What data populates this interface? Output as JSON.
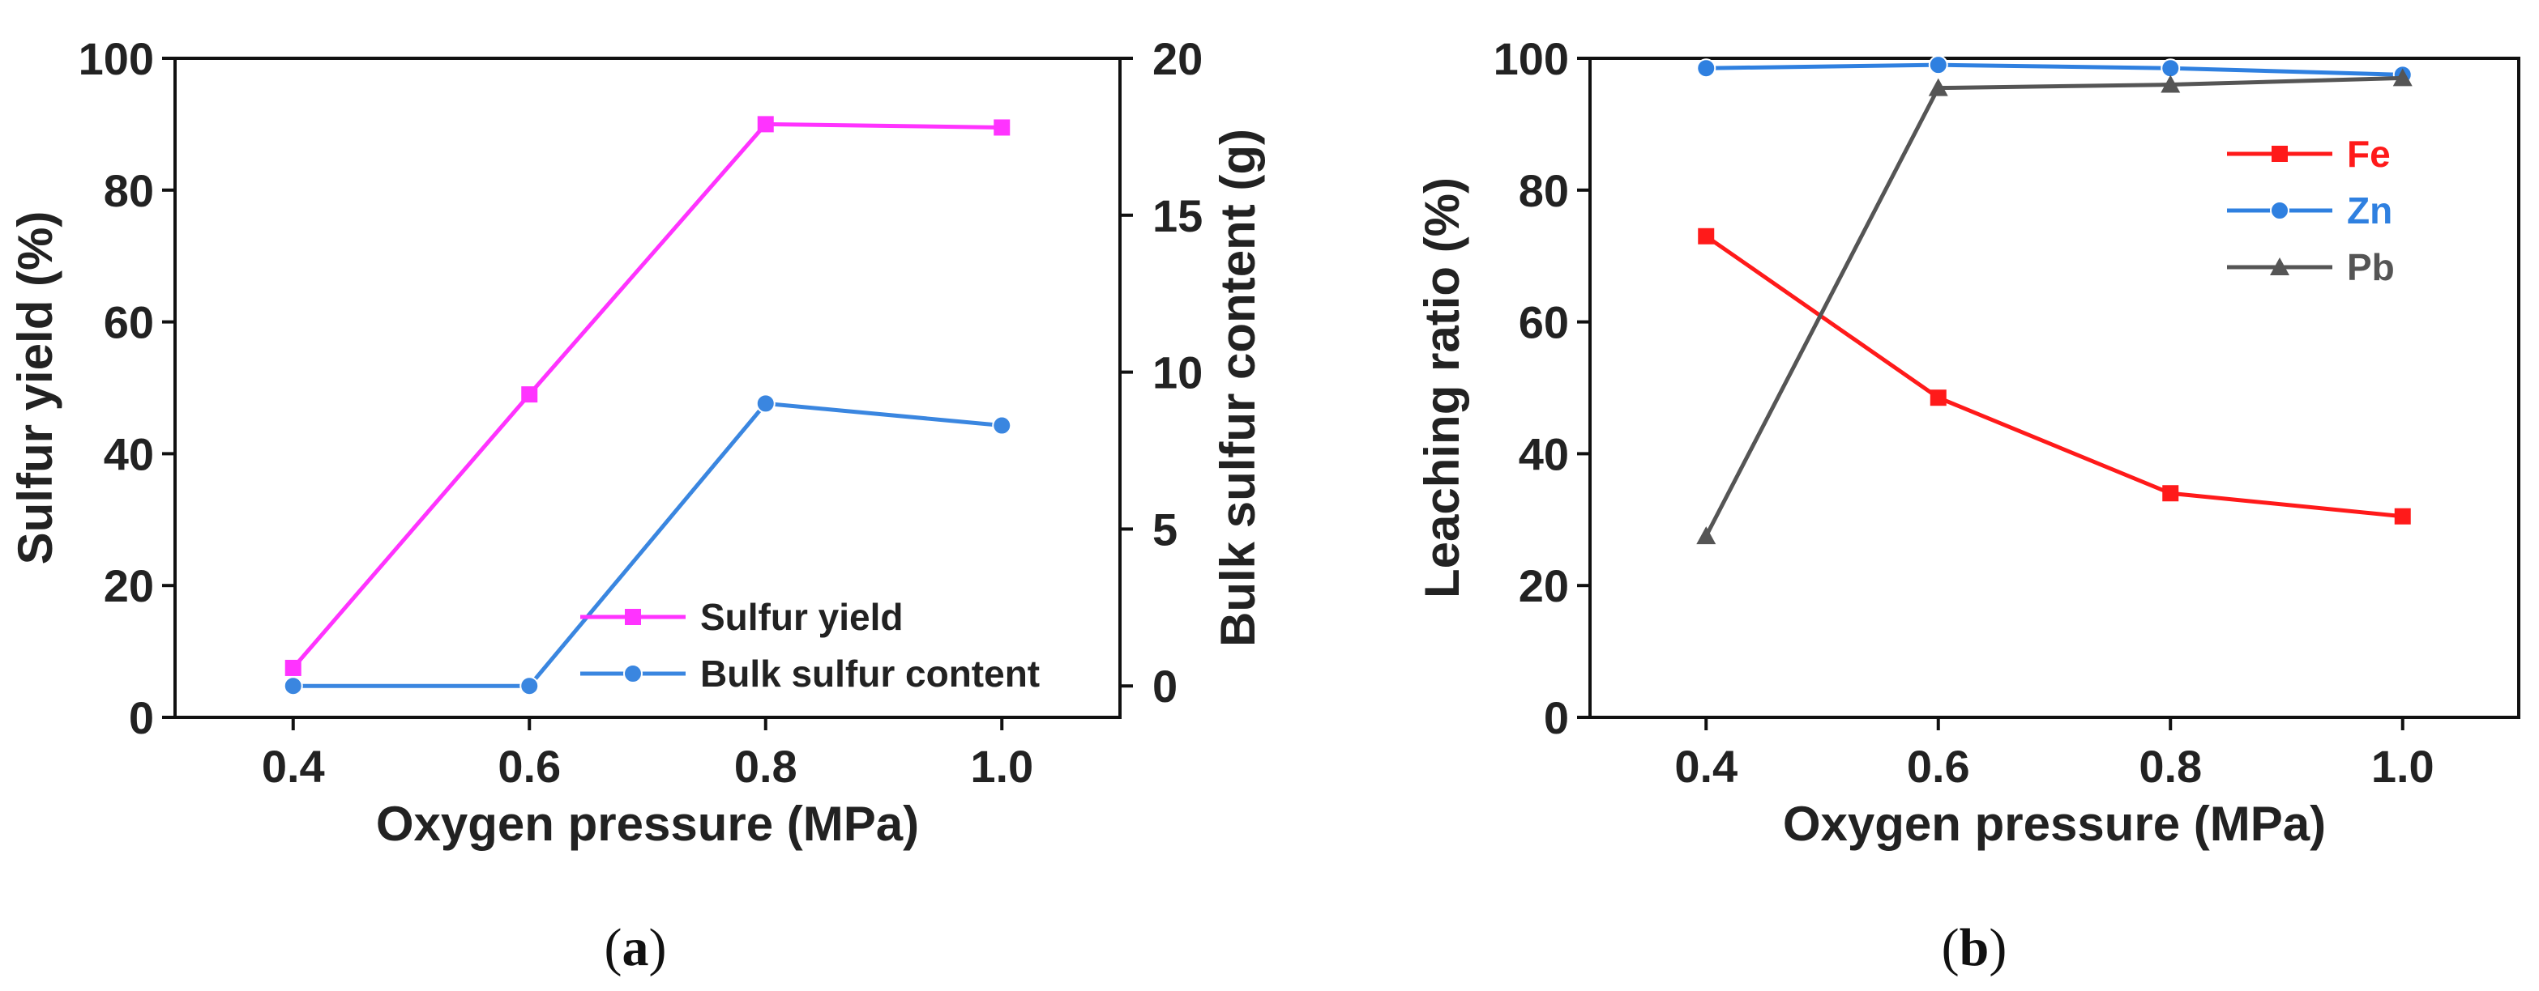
{
  "chart_data": [
    {
      "type": "line",
      "caption_letter": "a",
      "x": [
        0.4,
        0.6,
        0.8,
        1.0
      ],
      "x_ticks": [
        "0.4",
        "0.6",
        "0.8",
        "1.0"
      ],
      "xlabel": "Oxygen pressure (MPa)",
      "xlim": [
        0.3,
        1.1
      ],
      "ylabel": "Sulfur yield (%)",
      "ylim": [
        0,
        100
      ],
      "y_ticks": [
        "0",
        "20",
        "40",
        "60",
        "80",
        "100"
      ],
      "y2label": "Bulk sulfur content (g)",
      "y2lim": [
        -1,
        20
      ],
      "y2_ticks": [
        "0",
        "5",
        "10",
        "15",
        "20"
      ],
      "legend_position": "bottom-right",
      "series": [
        {
          "name": "Sulfur yield",
          "axis": "left",
          "values": [
            7.5,
            49,
            90,
            89.5
          ],
          "color": "#ff33ff",
          "marker": "square"
        },
        {
          "name": "Bulk sulfur content",
          "axis": "right",
          "values": [
            0,
            0,
            9,
            8.3
          ],
          "color": "#3a86e0",
          "marker": "circle"
        }
      ]
    },
    {
      "type": "line",
      "caption_letter": "b",
      "x": [
        0.4,
        0.6,
        0.8,
        1.0
      ],
      "x_ticks": [
        "0.4",
        "0.6",
        "0.8",
        "1.0"
      ],
      "xlabel": "Oxygen pressure (MPa)",
      "xlim": [
        0.3,
        1.1
      ],
      "ylabel": "Leaching ratio (%)",
      "ylim": [
        0,
        100
      ],
      "y_ticks": [
        "0",
        "20",
        "40",
        "60",
        "80",
        "100"
      ],
      "legend_position": "top-right",
      "series": [
        {
          "name": "Fe",
          "values": [
            73,
            48.5,
            34,
            30.5
          ],
          "color": "#ff1a1a",
          "marker": "square"
        },
        {
          "name": "Zn",
          "values": [
            98.5,
            99,
            98.5,
            97.5
          ],
          "color": "#2f80e0",
          "marker": "circle"
        },
        {
          "name": "Pb",
          "values": [
            27.5,
            95.5,
            96,
            97
          ],
          "color": "#555555",
          "marker": "triangle"
        }
      ]
    }
  ]
}
